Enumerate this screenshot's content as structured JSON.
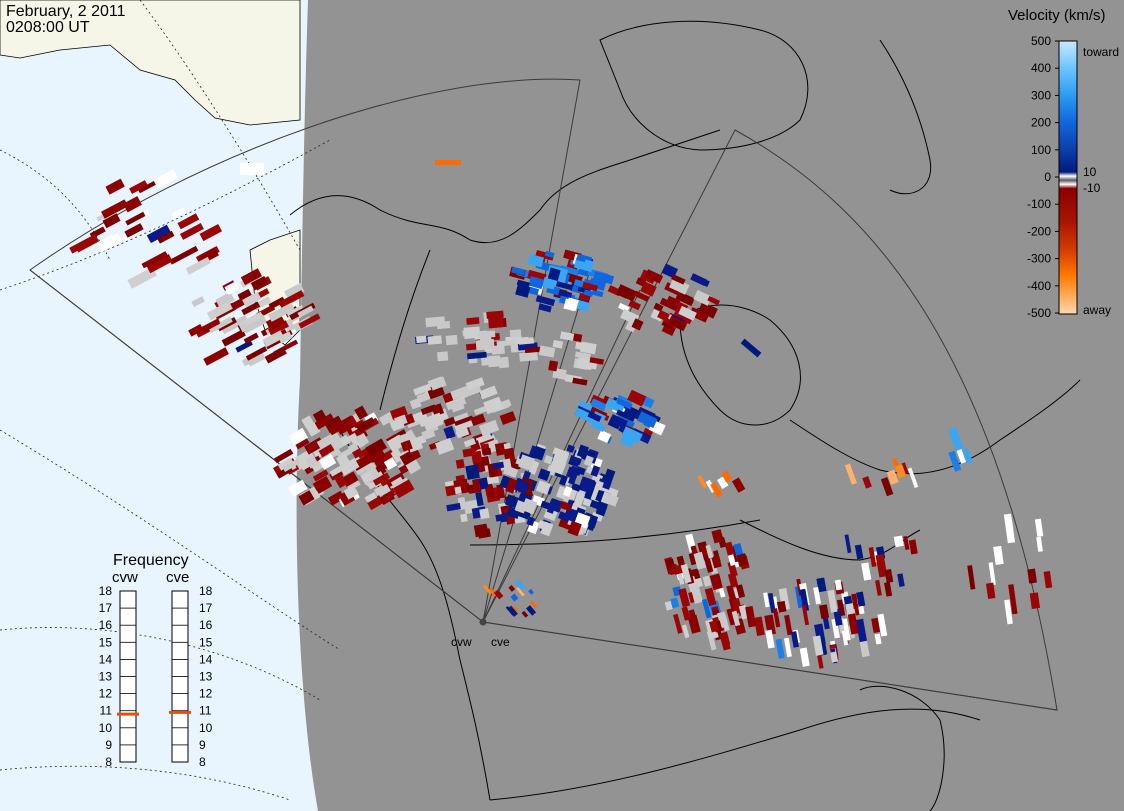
{
  "header": {
    "date": "February, 2 2011",
    "time": "0208:00 UT"
  },
  "legend": {
    "title": "Velocity (km/s)",
    "ticks": [
      "500",
      "400",
      "300",
      "200",
      "100",
      "0",
      "-100",
      "-200",
      "-300",
      "-400",
      "-500"
    ],
    "near_zero": [
      "10",
      "-10"
    ],
    "toward_label": "toward",
    "away_label": "away",
    "colors": [
      "#bfe3ff",
      "#6cc4ff",
      "#2a9cf0",
      "#1166dd",
      "#0c3ea8",
      "#001a80",
      "#8b0000",
      "#a81500",
      "#d23a00",
      "#ff7a00",
      "#ffcb9a"
    ]
  },
  "frequency": {
    "title": "Frequency",
    "radars": [
      {
        "name": "cvw",
        "value": 10.8
      },
      {
        "name": "cve",
        "value": 10.9
      }
    ],
    "ticks": [
      "18",
      "17",
      "16",
      "15",
      "14",
      "13",
      "12",
      "11",
      "10",
      "9",
      "8"
    ],
    "marker_color": "#e05010"
  },
  "sites": {
    "west": "cvw",
    "east": "cve"
  },
  "palette": {
    "ocean": "#e8f5ff",
    "land_day": "#f6f6e8",
    "night": "#939393",
    "ground_scatter": "#c9c9c9"
  }
}
